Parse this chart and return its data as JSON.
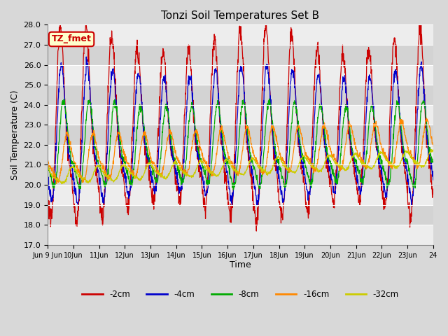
{
  "title": "Tonzi Soil Temperatures Set B",
  "ylabel": "Soil Temperature (C)",
  "xlabel": "Time",
  "ylim": [
    17.0,
    28.0
  ],
  "yticks": [
    17.0,
    18.0,
    19.0,
    20.0,
    21.0,
    22.0,
    23.0,
    24.0,
    25.0,
    26.0,
    27.0,
    28.0
  ],
  "series_colors": [
    "#cc0000",
    "#0000cc",
    "#00aa00",
    "#ff8800",
    "#cccc00"
  ],
  "series_labels": [
    "-2cm",
    "-4cm",
    "-8cm",
    "-16cm",
    "-32cm"
  ],
  "label_box_text": "TZ_fmet",
  "label_box_facecolor": "#ffffcc",
  "label_box_edgecolor": "#cc0000",
  "fig_facecolor": "#d8d8d8",
  "plot_bg_color": "#d8d8d8",
  "band_color_light": "#e8e8e8",
  "band_color_dark": "#c8c8c8",
  "n_points": 1440,
  "n_days": 15,
  "xtick_labels": [
    "Jun 9 Jun",
    "10Jun",
    "11Jun",
    "12Jun",
    "13Jun",
    "14Jun",
    "15Jun",
    "16Jun",
    "17Jun",
    "18Jun",
    "19Jun",
    "20Jun",
    "21Jun",
    "22Jun",
    "23Jun",
    "24"
  ]
}
